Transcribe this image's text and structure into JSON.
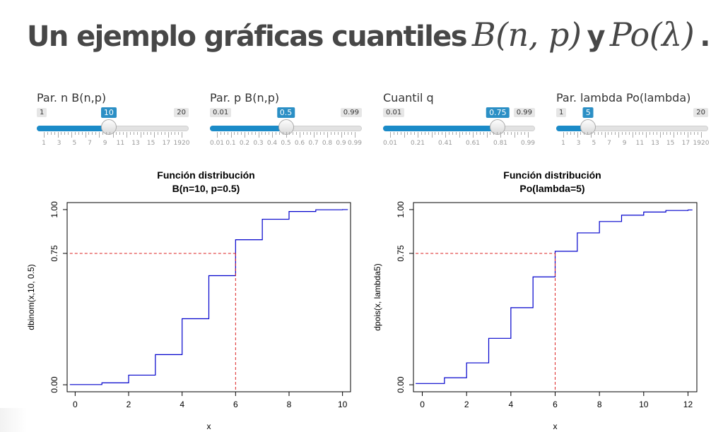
{
  "title": {
    "text_a": "Un ejemplo gráficas cuantiles",
    "math_a": "B(n, p)",
    "text_b": "y",
    "math_b": "Po(λ)",
    "dot": "."
  },
  "sliders": [
    {
      "label": "Par. n B(n,p)",
      "min": "1",
      "max": "20",
      "value": "10",
      "fraction": 0.4737,
      "ticks": [
        "1",
        "3",
        "5",
        "7",
        "9",
        "11",
        "13",
        "15",
        "17",
        "1920"
      ]
    },
    {
      "label": "Par. p B(n,p)",
      "min": "0.01",
      "max": "0.99",
      "value": "0.5",
      "fraction": 0.5,
      "ticks": [
        "0.01",
        "0.1",
        "0.2",
        "0.3",
        "0.4",
        "0.5",
        "0.6",
        "0.7",
        "0.8",
        "0.9",
        "0.99"
      ]
    },
    {
      "label": "Cuantil q",
      "min": "0.01",
      "max": "0.99",
      "value": "0.75",
      "fraction": 0.7551,
      "ticks": [
        "0.01",
        "0.21",
        "0.41",
        "0.61",
        "0.81",
        "0.99"
      ]
    },
    {
      "label": "Par. lambda Po(lambda)",
      "min": "1",
      "max": "20",
      "value": "5",
      "fraction": 0.2105,
      "ticks": [
        "1",
        "3",
        "5",
        "7",
        "9",
        "11",
        "13",
        "15",
        "17",
        "1920"
      ]
    }
  ],
  "chart_data": [
    {
      "type": "line",
      "title": "Función distribución",
      "subtitle": "B(n=10, p=0.5)",
      "xlabel": "x",
      "ylabel": "dbinom(x,10, 0.5)",
      "xlim": [
        -0.3,
        10.3
      ],
      "ylim": [
        0,
        1
      ],
      "x_ticks": [
        "0",
        "2",
        "4",
        "6",
        "8",
        "10"
      ],
      "y_ticks": [
        "0.00",
        "0.75",
        "1.00"
      ],
      "series": [
        {
          "type": "step",
          "color": "#0000cc",
          "x": [
            0,
            1,
            2,
            3,
            4,
            5,
            6,
            7,
            8,
            9,
            10
          ],
          "y": [
            0.001,
            0.011,
            0.055,
            0.172,
            0.377,
            0.623,
            0.828,
            0.945,
            0.989,
            0.999,
            1.0
          ]
        }
      ],
      "quantile": {
        "q": 0.75,
        "x": 6,
        "color": "#dd2222"
      }
    },
    {
      "type": "line",
      "title": "Función distribución",
      "subtitle": "Po(lambda=5)",
      "xlabel": "x",
      "ylabel": "dpois(x, lambda5)",
      "xlim": [
        -0.4,
        12.4
      ],
      "ylim": [
        0,
        1
      ],
      "x_ticks": [
        "0",
        "2",
        "4",
        "6",
        "8",
        "10",
        "12"
      ],
      "y_ticks": [
        "0.00",
        "0.75",
        "1.00"
      ],
      "series": [
        {
          "type": "step",
          "color": "#0000cc",
          "x": [
            0,
            1,
            2,
            3,
            4,
            5,
            6,
            7,
            8,
            9,
            10,
            11,
            12
          ],
          "y": [
            0.007,
            0.04,
            0.125,
            0.265,
            0.44,
            0.616,
            0.762,
            0.867,
            0.932,
            0.968,
            0.986,
            0.995,
            0.998
          ]
        }
      ],
      "quantile": {
        "q": 0.75,
        "x": 6,
        "color": "#dd2222"
      }
    }
  ]
}
